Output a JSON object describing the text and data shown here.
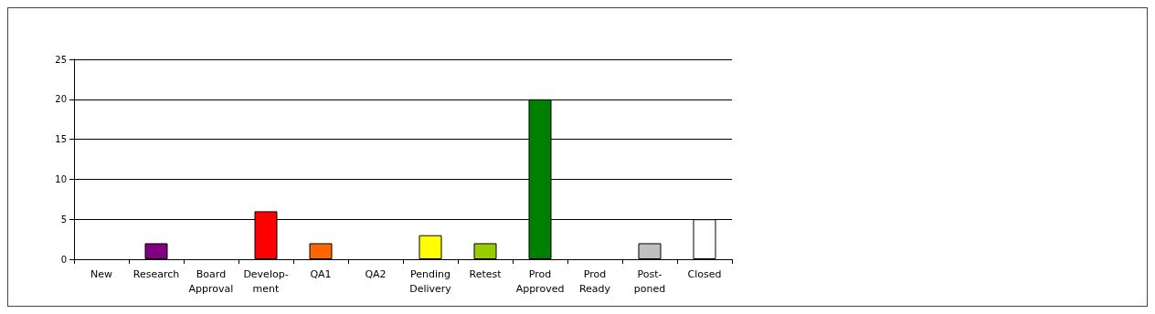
{
  "chart_data": {
    "type": "bar",
    "categories": [
      "New",
      "Research",
      "Board\nApproval",
      "Develop-\nment",
      "QA1",
      "QA2",
      "Pending\nDelivery",
      "Retest",
      "Prod\nApproved",
      "Prod\nReady",
      "Post-\nponed",
      "Closed"
    ],
    "values": [
      0,
      2,
      0,
      6,
      2,
      0,
      3,
      2,
      20,
      0,
      2,
      5
    ],
    "colors": [
      "#ffffff",
      "#800080",
      "#ffffff",
      "#ff0000",
      "#ff6600",
      "#ffffff",
      "#ffff00",
      "#99cc00",
      "#008000",
      "#ffffff",
      "#c0c0c0",
      "#ffffff"
    ],
    "ylim": [
      0,
      25
    ],
    "yticks": [
      0,
      5,
      10,
      15,
      20,
      25
    ],
    "grid": "y"
  }
}
